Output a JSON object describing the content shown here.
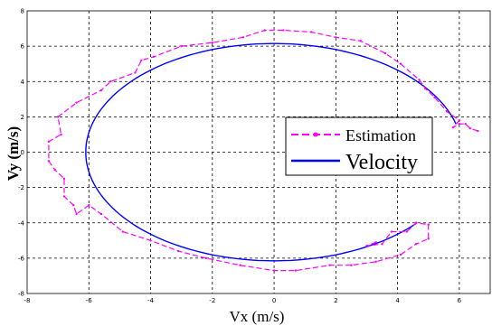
{
  "chart_data": {
    "type": "line",
    "title": "",
    "xlabel": "Vx (m/s)",
    "ylabel": "Vy (m/s)",
    "xlim": [
      -8,
      7
    ],
    "ylim": [
      -8,
      8
    ],
    "x_ticks": [
      -8,
      -6,
      -4,
      -2,
      0,
      2,
      4,
      6
    ],
    "y_ticks": [
      -8,
      -6,
      -4,
      -2,
      0,
      2,
      4,
      6,
      8
    ],
    "grid": true,
    "legend_position": "right",
    "series": [
      {
        "name": "Estimation",
        "color": "#ff00ff",
        "style": "dashed-with-point-markers",
        "points": [
          [
            6.6,
            1.2
          ],
          [
            6.35,
            1.35
          ],
          [
            6.2,
            1.6
          ],
          [
            6.0,
            1.6
          ],
          [
            5.8,
            1.4
          ],
          [
            6.0,
            1.8
          ],
          [
            5.6,
            2.3
          ],
          [
            5.2,
            3.1
          ],
          [
            4.9,
            3.6
          ],
          [
            4.7,
            4.1
          ],
          [
            4.1,
            5.0
          ],
          [
            3.6,
            5.6
          ],
          [
            2.8,
            6.3
          ],
          [
            2.0,
            6.5
          ],
          [
            1.2,
            6.8
          ],
          [
            0.3,
            6.9
          ],
          [
            -0.3,
            6.9
          ],
          [
            -1.0,
            6.5
          ],
          [
            -2.0,
            6.2
          ],
          [
            -3.0,
            6.0
          ],
          [
            -3.9,
            5.4
          ],
          [
            -4.3,
            5.2
          ],
          [
            -4.5,
            4.5
          ],
          [
            -5.3,
            4.0
          ],
          [
            -5.6,
            3.5
          ],
          [
            -6.4,
            2.8
          ],
          [
            -7.0,
            2.0
          ],
          [
            -6.9,
            1.0
          ],
          [
            -7.3,
            0.6
          ],
          [
            -7.3,
            -0.5
          ],
          [
            -7.1,
            -1.0
          ],
          [
            -6.8,
            -1.5
          ],
          [
            -6.8,
            -2.5
          ],
          [
            -6.5,
            -3.0
          ],
          [
            -6.4,
            -3.5
          ],
          [
            -6.0,
            -3.0
          ],
          [
            -5.6,
            -3.5
          ],
          [
            -4.9,
            -4.5
          ],
          [
            -4.0,
            -5.0
          ],
          [
            -3.1,
            -5.6
          ],
          [
            -2.2,
            -6.0
          ],
          [
            -1.1,
            -6.4
          ],
          [
            0.0,
            -6.7
          ],
          [
            0.7,
            -6.7
          ],
          [
            1.8,
            -6.4
          ],
          [
            2.5,
            -6.4
          ],
          [
            3.3,
            -6.2
          ],
          [
            4.1,
            -5.8
          ],
          [
            4.6,
            -5.2
          ],
          [
            5.0,
            -4.9
          ],
          [
            5.0,
            -4.1
          ],
          [
            4.6,
            -4.0
          ],
          [
            4.3,
            -4.5
          ],
          [
            3.8,
            -4.5
          ],
          [
            3.5,
            -5.2
          ],
          [
            3.0,
            -5.3
          ],
          [
            3.3,
            -5.1
          ]
        ]
      },
      {
        "name": "Velocity",
        "color": "#0000ff",
        "style": "solid",
        "ellipse": {
          "cx": 0.0,
          "cy": 0.0,
          "rx": 6.1,
          "ry": 6.15
        },
        "t_range_deg": [
          15,
          320
        ]
      }
    ]
  }
}
